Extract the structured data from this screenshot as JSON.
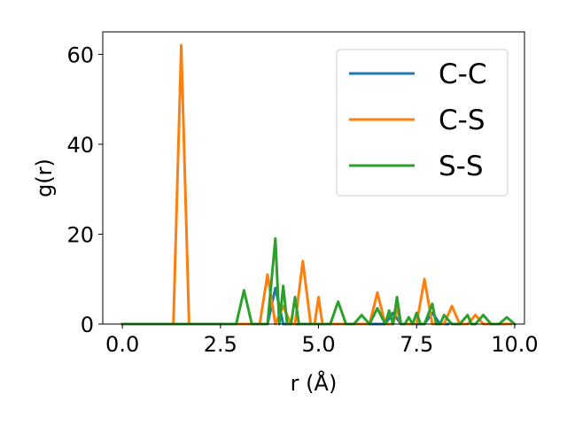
{
  "chart_data": {
    "type": "line",
    "title": "",
    "xlabel": "r (Å)",
    "ylabel": "g(r)",
    "xlim": [
      -0.5,
      10.25
    ],
    "ylim": [
      0,
      65
    ],
    "xticks": [
      0.0,
      2.5,
      5.0,
      7.5,
      10.0
    ],
    "xtick_labels": [
      "0.0",
      "2.5",
      "5.0",
      "7.5",
      "10.0"
    ],
    "yticks": [
      0,
      20,
      40,
      60
    ],
    "ytick_labels": [
      "0",
      "20",
      "40",
      "60"
    ],
    "grid": false,
    "legend_position": "upper-right",
    "series": [
      {
        "name": "C-C",
        "color": "#1f77b4",
        "x": [
          0.0,
          3.7,
          3.9,
          4.1,
          4.3,
          6.7,
          6.9,
          7.1,
          7.7,
          7.9,
          8.1,
          8.3
        ],
        "y": [
          0.0,
          0.0,
          8.0,
          0.0,
          0.0,
          0.0,
          2.5,
          0.0,
          0.0,
          2.5,
          0.0,
          0.0
        ]
      },
      {
        "name": "C-S",
        "color": "#ff7f0e",
        "x": [
          0.0,
          1.3,
          1.5,
          1.7,
          3.5,
          3.7,
          3.9,
          4.1,
          4.3,
          4.4,
          4.6,
          4.8,
          4.9,
          5.0,
          5.1,
          6.3,
          6.5,
          6.7,
          6.9,
          7.0,
          7.1,
          7.5,
          7.7,
          7.9,
          8.2,
          8.4,
          8.6,
          8.8,
          9.0,
          9.2,
          9.9
        ],
        "y": [
          0.0,
          0.0,
          62.0,
          0.0,
          0.0,
          11.0,
          0.0,
          4.0,
          0.0,
          0.0,
          14.0,
          0.0,
          0.0,
          6.0,
          0.0,
          0.0,
          7.0,
          0.0,
          0.0,
          3.5,
          0.0,
          0.0,
          10.0,
          0.0,
          0.0,
          4.0,
          0.0,
          0.0,
          2.0,
          0.0,
          0.0
        ]
      },
      {
        "name": "S-S",
        "color": "#2ca02c",
        "x": [
          0.0,
          2.9,
          3.1,
          3.3,
          3.7,
          3.9,
          4.0,
          4.1,
          4.2,
          4.3,
          4.4,
          4.5,
          5.3,
          5.5,
          5.7,
          5.9,
          6.1,
          6.3,
          6.5,
          6.7,
          6.8,
          6.9,
          7.0,
          7.1,
          7.2,
          7.3,
          7.4,
          7.5,
          7.6,
          7.7,
          7.9,
          8.0,
          8.1,
          8.2,
          8.4,
          8.6,
          8.8,
          8.9,
          9.0,
          9.2,
          9.4,
          9.6,
          9.8,
          10.0
        ],
        "y": [
          0.0,
          0.0,
          7.5,
          0.0,
          0.0,
          19.0,
          0.0,
          8.5,
          0.0,
          0.0,
          6.0,
          0.0,
          0.0,
          5.0,
          0.0,
          0.0,
          2.0,
          0.0,
          3.5,
          0.0,
          3.0,
          0.0,
          6.0,
          0.0,
          0.0,
          1.5,
          0.0,
          2.5,
          0.0,
          0.0,
          4.5,
          0.0,
          0.0,
          2.0,
          0.0,
          0.0,
          2.0,
          0.0,
          0.0,
          2.0,
          0.0,
          0.0,
          1.5,
          0.0
        ]
      }
    ]
  }
}
